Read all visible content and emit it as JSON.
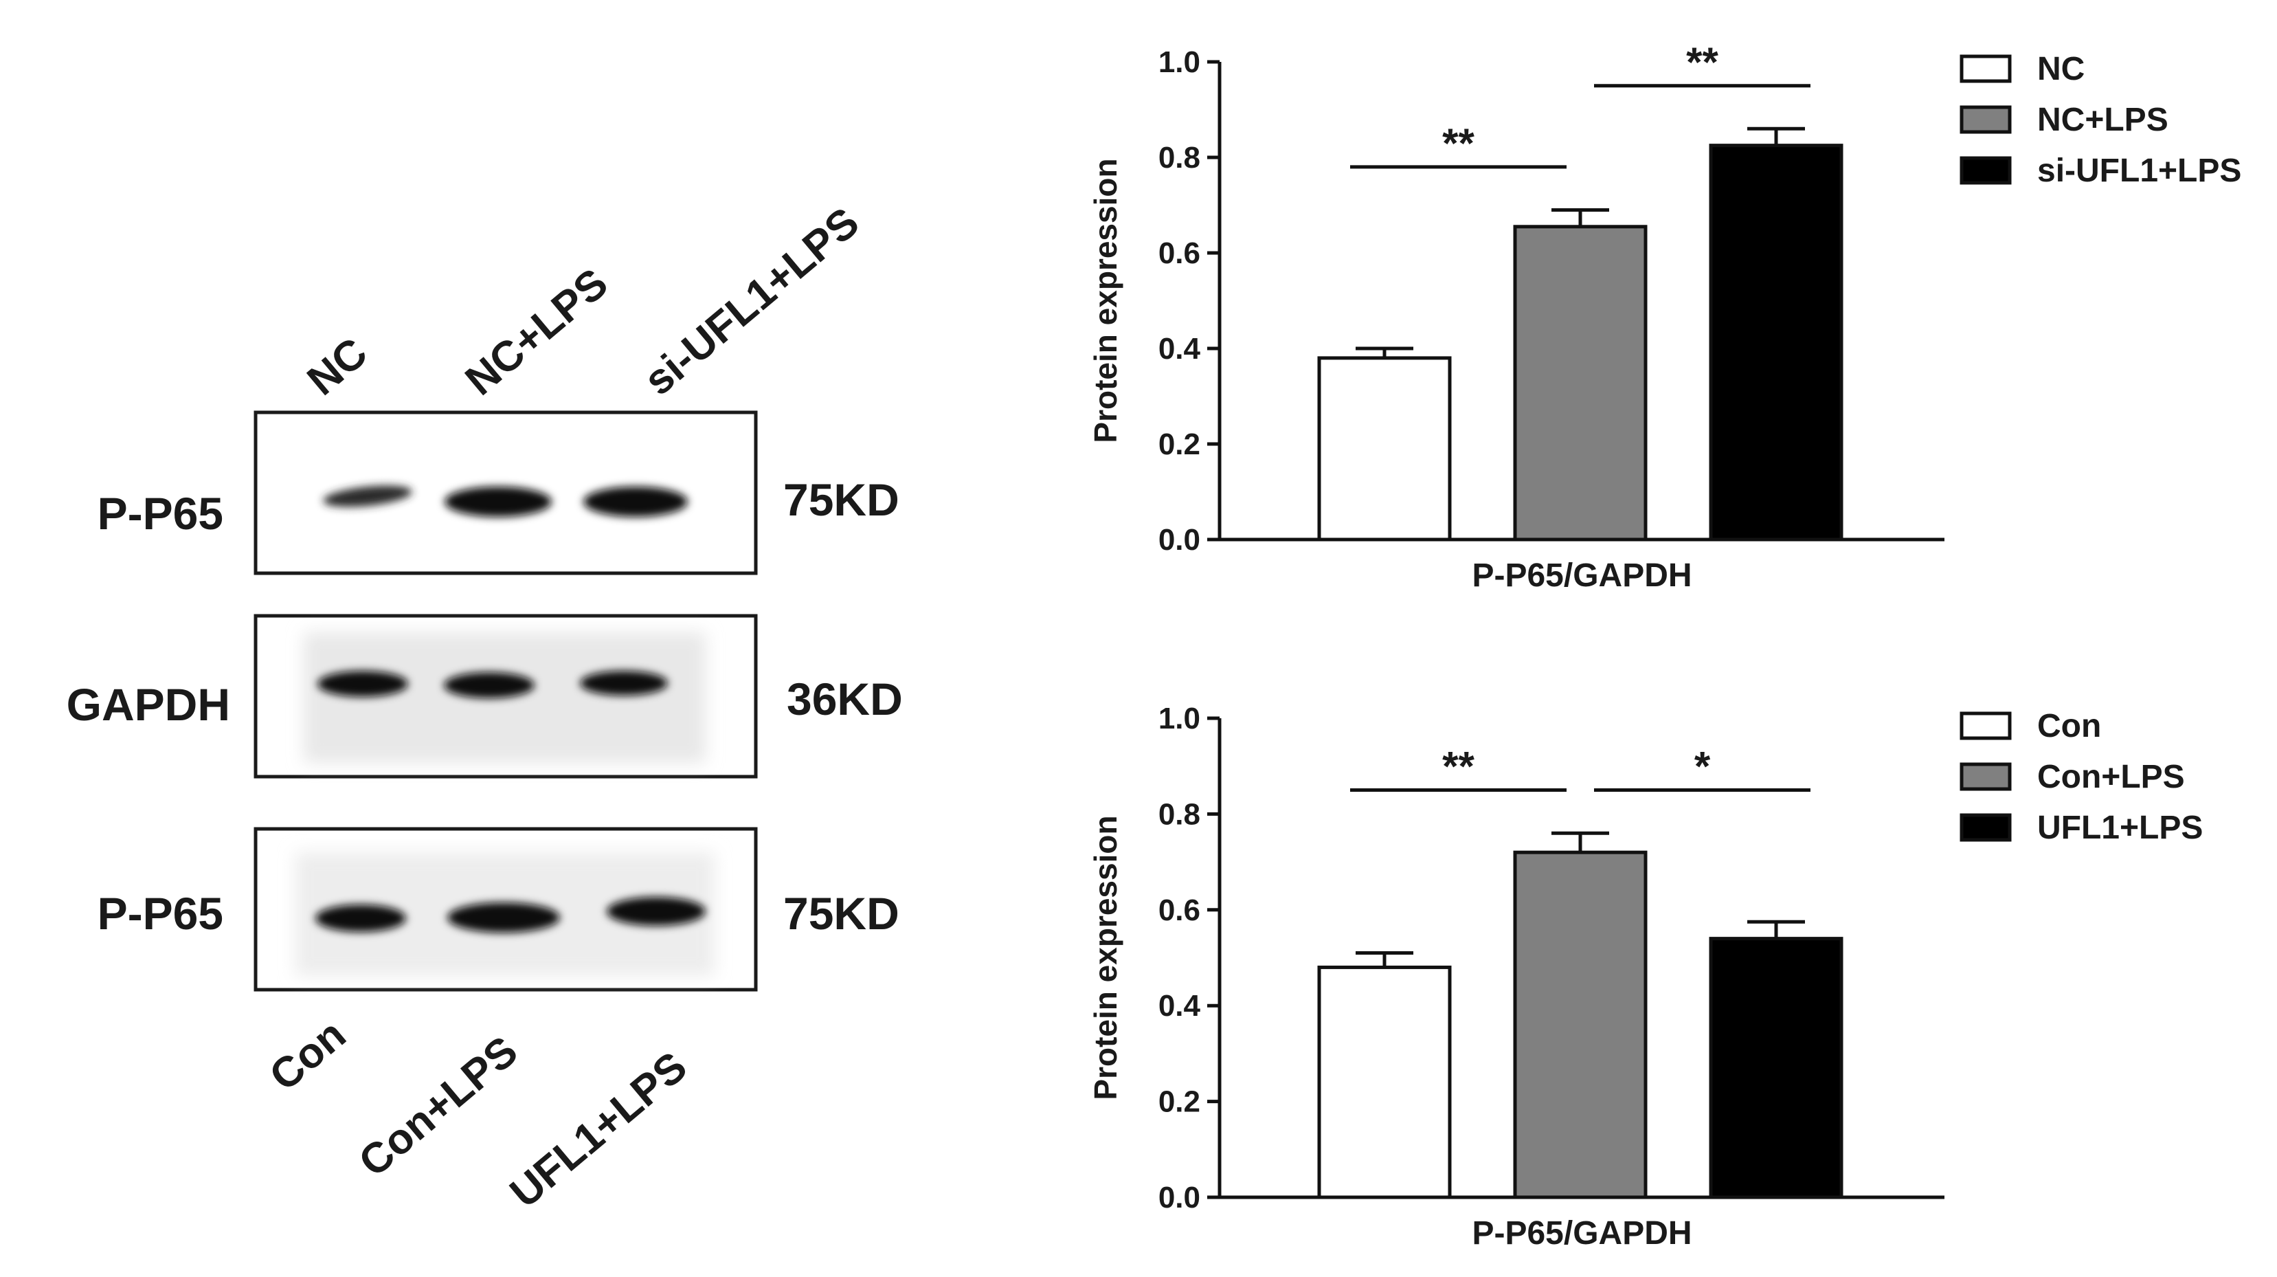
{
  "blot": {
    "top_lanes": [
      "NC",
      "NC+LPS",
      "si-UFL1+LPS"
    ],
    "bottom_lanes": [
      "Con",
      "Con+LPS",
      "UFL1+LPS"
    ],
    "rows": [
      {
        "protein": "P-P65",
        "size": "75KD"
      },
      {
        "protein": "GAPDH",
        "size": "36KD"
      },
      {
        "protein": "P-P65",
        "size": "75KD"
      }
    ]
  },
  "chart_data": [
    {
      "type": "bar",
      "xlabel": "P-P65/GAPDH",
      "ylabel": "Protein expression",
      "ylim": [
        0,
        1.0
      ],
      "yticks": [
        "0.0",
        "0.2",
        "0.4",
        "0.6",
        "0.8",
        "1.0"
      ],
      "series": [
        {
          "name": "NC",
          "value": 0.38,
          "error": 0.02,
          "color": "#ffffff"
        },
        {
          "name": "NC+LPS",
          "value": 0.655,
          "error": 0.035,
          "color": "#808080"
        },
        {
          "name": "si-UFL1+LPS",
          "value": 0.825,
          "error": 0.035,
          "color": "#000000"
        }
      ],
      "significance": [
        {
          "from": 0,
          "to": 1,
          "label": "**"
        },
        {
          "from": 1,
          "to": 2,
          "label": "**"
        }
      ],
      "legend_position": "top-right"
    },
    {
      "type": "bar",
      "xlabel": "P-P65/GAPDH",
      "ylabel": "Protein expression",
      "ylim": [
        0,
        1.0
      ],
      "yticks": [
        "0.0",
        "0.2",
        "0.4",
        "0.6",
        "0.8",
        "1.0"
      ],
      "series": [
        {
          "name": "Con",
          "value": 0.48,
          "error": 0.03,
          "color": "#ffffff"
        },
        {
          "name": "Con+LPS",
          "value": 0.72,
          "error": 0.04,
          "color": "#808080"
        },
        {
          "name": "UFL1+LPS",
          "value": 0.54,
          "error": 0.035,
          "color": "#000000"
        }
      ],
      "significance": [
        {
          "from": 0,
          "to": 1,
          "label": "**"
        },
        {
          "from": 1,
          "to": 2,
          "label": "*"
        }
      ],
      "legend_position": "top-right"
    }
  ]
}
